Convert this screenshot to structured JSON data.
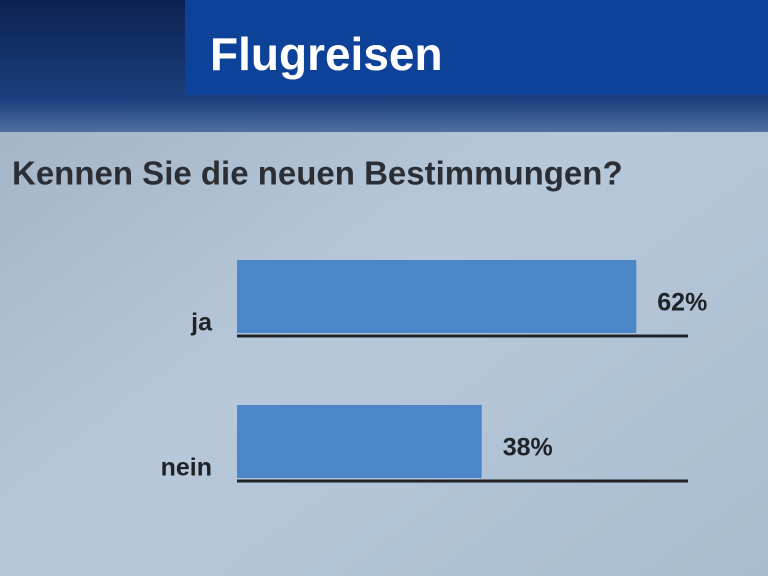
{
  "chart_data": {
    "type": "bar",
    "orientation": "horizontal",
    "title": "Flugreisen",
    "subtitle": "Kennen Sie die neuen Bestimmungen?",
    "categories": [
      "ja",
      "nein"
    ],
    "values": [
      62,
      38
    ],
    "value_labels": [
      "62%",
      "38%"
    ],
    "color": "#4a86c8"
  }
}
